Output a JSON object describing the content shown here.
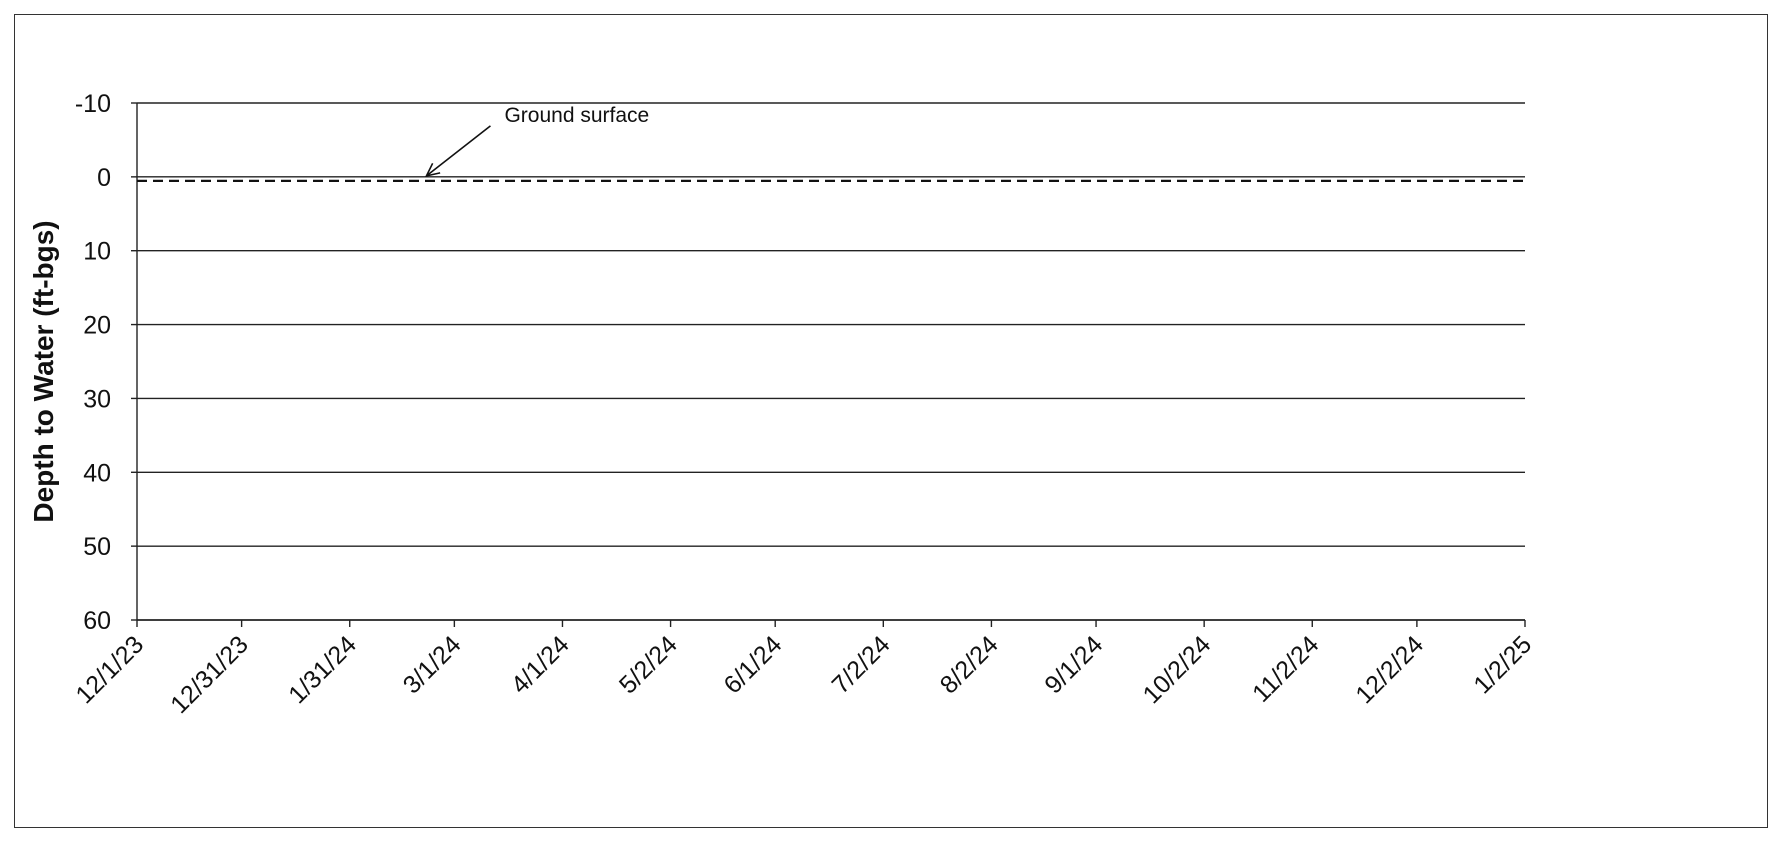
{
  "chart_data": {
    "type": "line",
    "title": "",
    "xlabel": "",
    "ylabel": "Depth to Water (ft-bgs)",
    "y_inverted": true,
    "ylim": [
      60,
      -10
    ],
    "yticks": [
      -10,
      0,
      10,
      20,
      30,
      40,
      50,
      60
    ],
    "yticks_labels": [
      "-10",
      "0",
      "10",
      "20",
      "30",
      "40",
      "50",
      "60"
    ],
    "x_type": "date",
    "xlim": [
      "2023-12-01",
      "2025-01-02"
    ],
    "xticks": [
      "2023-12-01",
      "2023-12-31",
      "2024-01-31",
      "2024-03-01",
      "2024-04-01",
      "2024-05-02",
      "2024-06-01",
      "2024-07-02",
      "2024-08-02",
      "2024-09-01",
      "2024-10-02",
      "2024-11-02",
      "2024-12-02",
      "2025-01-02"
    ],
    "xticks_labels": [
      "12/1/23",
      "12/31/23",
      "1/31/24",
      "3/1/24",
      "4/1/24",
      "5/2/24",
      "6/1/24",
      "7/2/24",
      "8/2/24",
      "9/1/24",
      "10/2/24",
      "11/2/24",
      "12/2/24",
      "1/2/25"
    ],
    "grid": "horizontal",
    "legend": "none",
    "series": [
      {
        "line_style": "dashed",
        "color": "#111111",
        "points": [
          {
            "x": "2023-12-01",
            "y": 0
          },
          {
            "x": "2025-01-02",
            "y": 0
          }
        ]
      }
    ],
    "annotations": [
      {
        "text": "Ground surface",
        "arrow_to": {
          "x": "2024-02-22",
          "y": 0
        }
      }
    ]
  }
}
